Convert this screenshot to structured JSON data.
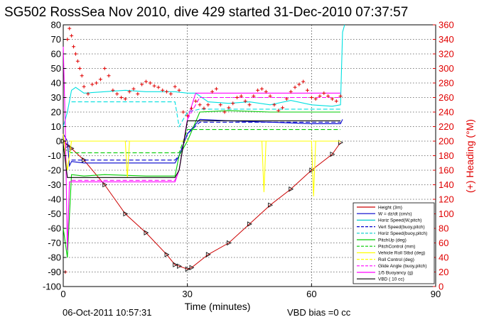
{
  "chart_data": {
    "type": "line",
    "title": "SG502 RossSea Nov 2010, dive 429 started 31-Dec-2010 07:37:57",
    "xlabel": "Time (minutes)",
    "ylabel": "",
    "ylabel_right": "(+) Heading (°M)",
    "xlim": [
      0,
      90
    ],
    "ylim": [
      -100,
      80
    ],
    "ylim_right": [
      0,
      360
    ],
    "xticks": [
      0,
      30,
      60,
      90
    ],
    "yticks": [
      80,
      70,
      60,
      50,
      40,
      30,
      20,
      10,
      0,
      -10,
      -20,
      -30,
      -40,
      -50,
      -60,
      -70,
      -80,
      -90,
      -100
    ],
    "yticks_right": [
      360,
      340,
      320,
      300,
      280,
      260,
      240,
      220,
      200,
      180,
      160,
      140,
      120,
      100,
      80,
      60,
      40,
      20,
      0
    ],
    "grid": true,
    "legend_position": "bottom-right",
    "footer_left": "06-Oct-2011 10:57:31",
    "footer_right": "VBD bias =0 cc",
    "legend": [
      {
        "label": "Height (3m)",
        "color": "#cc0000",
        "style": "solid"
      },
      {
        "label": "W = dz/dt (cm/s)",
        "color": "#0000cc",
        "style": "solid"
      },
      {
        "label": "Horiz Speed(W,pitch)",
        "color": "#00cccc",
        "style": "solid"
      },
      {
        "label": "Vert Speed(buoy,pitch)",
        "color": "#0000cc",
        "style": "dashed"
      },
      {
        "label": "Horiz Speed(buoy,pitch)",
        "color": "#00cccc",
        "style": "dashed"
      },
      {
        "label": "PitchUp (deg)",
        "color": "#00cc00",
        "style": "solid"
      },
      {
        "label": "PitchControl (mm)",
        "color": "#00cc00",
        "style": "dashed"
      },
      {
        "label": "Vehicle Roll Stbd (deg)",
        "color": "#ffff00",
        "style": "solid"
      },
      {
        "label": "Roll Control (deg)",
        "color": "#ffff00",
        "style": "dashed"
      },
      {
        "label": "Glide Angle (buoy,pitch)",
        "color": "#ff00ff",
        "style": "dashed"
      },
      {
        "label": "1/5 Buoyancy (g)",
        "color": "#ff00ff",
        "style": "solid"
      },
      {
        "label": "VBD ( 10 cc)",
        "color": "#000000",
        "style": "solid"
      }
    ],
    "series": [
      {
        "key": "depth",
        "color": "#cc0000",
        "style": "solid",
        "marker": "triangle",
        "x": [
          0,
          1,
          2,
          5,
          10,
          15,
          20,
          25,
          27,
          28,
          30,
          31,
          35,
          40,
          45,
          50,
          55,
          60,
          65,
          67
        ],
        "y": [
          0,
          -3,
          -5,
          -13,
          -30,
          -50,
          -63,
          -78,
          -85,
          -86,
          -88,
          -87,
          -78,
          -70,
          -57,
          -44,
          -33,
          -20,
          -9,
          -1
        ]
      },
      {
        "key": "w",
        "color": "#0000cc",
        "style": "solid",
        "x": [
          0,
          1,
          1.5,
          2,
          5,
          10,
          20,
          27,
          28,
          30,
          33,
          40,
          50,
          60,
          67,
          67.5
        ],
        "y": [
          5,
          0,
          -17,
          -14,
          -15,
          -15,
          -15,
          -15,
          -10,
          5,
          15,
          14,
          13,
          12,
          12,
          15
        ]
      },
      {
        "key": "vert_buoy",
        "color": "#0000cc",
        "style": "dashed",
        "x": [
          2,
          27,
          28,
          30,
          33,
          67
        ],
        "y": [
          -13,
          -13,
          -10,
          5,
          13,
          13
        ]
      },
      {
        "key": "horiz_w",
        "color": "#00e0e0",
        "style": "solid",
        "x": [
          0,
          1,
          2,
          3,
          5,
          10,
          15,
          20,
          25,
          27,
          30,
          32,
          35,
          40,
          45,
          50,
          55,
          60,
          65,
          67,
          67.5,
          68
        ],
        "y": [
          10,
          20,
          35,
          37,
          33,
          34,
          35,
          34,
          34,
          34,
          33,
          33,
          27,
          26,
          27,
          25,
          28,
          25,
          24,
          25,
          75,
          80
        ]
      },
      {
        "key": "horiz_buoy",
        "color": "#00e0e0",
        "style": "dashed",
        "x": [
          2,
          27,
          28,
          30,
          33,
          67
        ],
        "y": [
          27,
          27,
          10,
          20,
          22,
          22
        ]
      },
      {
        "key": "pitch",
        "color": "#00cc00",
        "style": "solid",
        "x": [
          0,
          1,
          2,
          5,
          10,
          20,
          27,
          28,
          30,
          33,
          40,
          50,
          60,
          67
        ],
        "y": [
          -60,
          -80,
          -23,
          -24,
          -23,
          -24,
          -24,
          -10,
          0,
          20,
          21,
          20,
          20,
          20
        ]
      },
      {
        "key": "pitch_ctrl",
        "color": "#00cc00",
        "style": "dashed",
        "x": [
          0,
          2,
          27,
          28,
          30,
          33,
          67
        ],
        "y": [
          -5,
          -8,
          -8,
          -8,
          8,
          8,
          8
        ]
      },
      {
        "key": "roll",
        "color": "#ffff00",
        "style": "solid",
        "x": [
          0,
          1,
          2,
          5,
          10,
          15,
          15.5,
          16,
          20,
          25,
          27,
          30,
          33,
          40,
          48,
          48.5,
          49,
          55,
          60,
          60.5,
          61,
          65,
          67
        ],
        "y": [
          5,
          -20,
          0,
          0,
          0,
          0,
          -25,
          0,
          0,
          0,
          0,
          0,
          0,
          0,
          0,
          -35,
          0,
          0,
          0,
          -38,
          0,
          0,
          0
        ]
      },
      {
        "key": "roll_ctrl",
        "color": "#ffff00",
        "style": "dashed",
        "x": [
          0,
          67
        ],
        "y": [
          0,
          0
        ]
      },
      {
        "key": "glide",
        "color": "#ff00ff",
        "style": "dashed",
        "x": [
          2,
          27,
          28,
          30,
          33,
          67
        ],
        "y": [
          -27,
          -27,
          -20,
          15,
          30,
          30
        ]
      },
      {
        "key": "buoyancy",
        "color": "#ff00ff",
        "style": "solid",
        "x": [
          0,
          0.5,
          1,
          1.5,
          2,
          5,
          27,
          28,
          30,
          32,
          67
        ],
        "y": [
          65,
          10,
          -75,
          -28,
          -28,
          -28,
          -28,
          -20,
          15,
          33,
          33
        ]
      },
      {
        "key": "vbd",
        "color": "#000000",
        "style": "solid",
        "x": [
          0,
          1,
          2,
          27,
          28,
          30,
          32,
          67
        ],
        "y": [
          -2,
          -25,
          -25,
          -25,
          -20,
          14,
          14,
          14
        ]
      }
    ],
    "heading": {
      "axis": "right",
      "color": "#e00000",
      "marker": "plus",
      "x": [
        0.5,
        1,
        1.5,
        2,
        2.5,
        3,
        3.5,
        4,
        4.5,
        5,
        6,
        7,
        8,
        9,
        10,
        11,
        12,
        13,
        14,
        15,
        16,
        17,
        18,
        19,
        20,
        21,
        22,
        23,
        24,
        25,
        26,
        27,
        28,
        29,
        30,
        31,
        32,
        33,
        34,
        35,
        36,
        37,
        38,
        39,
        40,
        41,
        42,
        43,
        44,
        45,
        46,
        47,
        48,
        49,
        50,
        51,
        52,
        53,
        54,
        55,
        56,
        57,
        58,
        59,
        60,
        61,
        62,
        63,
        64,
        65,
        66,
        67
      ],
      "y": [
        20,
        340,
        355,
        345,
        330,
        320,
        310,
        300,
        290,
        275,
        265,
        278,
        280,
        285,
        300,
        290,
        270,
        265,
        260,
        258,
        268,
        272,
        265,
        278,
        282,
        280,
        276,
        274,
        270,
        268,
        265,
        275,
        270,
        240,
        235,
        245,
        255,
        250,
        245,
        250,
        268,
        272,
        250,
        240,
        246,
        252,
        260,
        262,
        255,
        250,
        262,
        270,
        272,
        268,
        262,
        250,
        242,
        246,
        258,
        268,
        274,
        278,
        282,
        270,
        260,
        258,
        262,
        266,
        262,
        258,
        255,
        262
      ]
    }
  }
}
